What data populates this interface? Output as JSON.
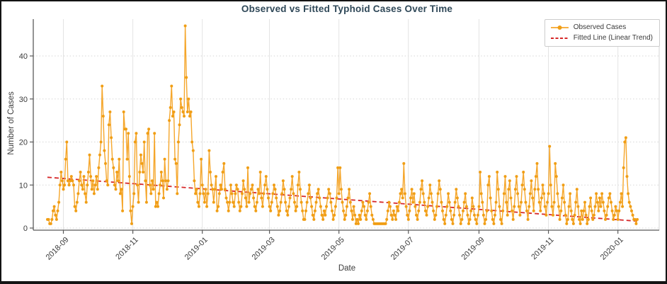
{
  "figure": {
    "title": "Observed vs Fitted Typhoid Cases Over Time",
    "xlabel": "Date",
    "ylabel": "Number of Cases"
  },
  "colors": {
    "observed_line": "#F5A62B",
    "observed_marker": "#F09E15",
    "fitted_line": "#D62728",
    "title_text": "#2F4858",
    "axis_text": "#3B3B3B",
    "grid_horizontal": "#D6D6D6",
    "grid_vertical": "#E3E3E3",
    "spine_dark": "#5A5A5A",
    "spine_light": "#D4D4D4",
    "legend_border": "#CCCCCC",
    "frame_border": "#141414",
    "background": "#FFFFFF"
  },
  "chart_data": {
    "type": "line",
    "title": "Observed vs Fitted Typhoid Cases Over Time",
    "xlabel": "Date",
    "ylabel": "Number of Cases",
    "grid": true,
    "legend_position": "upper right",
    "frequency": "daily",
    "x_start_date": "2018-08-18",
    "x_end_date": "2020-01-18",
    "y_ticks": [
      0,
      10,
      20,
      30,
      40
    ],
    "ylim": [
      -2,
      48.6
    ],
    "x_ticks": [
      {
        "label": "2018-09",
        "day_index": 14
      },
      {
        "label": "2018-11",
        "day_index": 75
      },
      {
        "label": "2019-01",
        "day_index": 136
      },
      {
        "label": "2019-03",
        "day_index": 195
      },
      {
        "label": "2019-05",
        "day_index": 256
      },
      {
        "label": "2019-07",
        "day_index": 317
      },
      {
        "label": "2019-09",
        "day_index": 379
      },
      {
        "label": "2019-11",
        "day_index": 440
      },
      {
        "label": "2020-01",
        "day_index": 501
      }
    ],
    "series": [
      {
        "name": "Observed Cases",
        "style": "line+marker",
        "values": [
          2,
          2,
          1,
          1,
          2,
          4,
          5,
          3,
          2,
          4,
          6,
          10,
          13,
          11,
          9,
          10,
          16,
          20,
          11,
          10,
          11,
          12,
          11,
          10,
          5,
          4,
          6,
          8,
          11,
          13,
          10,
          9,
          12,
          8,
          6,
          10,
          13,
          17,
          12,
          9,
          11,
          8,
          10,
          12,
          9,
          14,
          17,
          20,
          33,
          26,
          18,
          15,
          11,
          10,
          24,
          27,
          21,
          16,
          14,
          10,
          9,
          13,
          11,
          16,
          8,
          9,
          4,
          27,
          23,
          23,
          16,
          22,
          12,
          4,
          1,
          5,
          8,
          20,
          22,
          10,
          6,
          13,
          17,
          15,
          13,
          20,
          11,
          6,
          22,
          23,
          10,
          8,
          11,
          9,
          22,
          5,
          6,
          5,
          8,
          10,
          13,
          11,
          7,
          16,
          11,
          9,
          11,
          25,
          28,
          33,
          26,
          27,
          16,
          15,
          8,
          20,
          24,
          30,
          28,
          27,
          26,
          47,
          35,
          27,
          30,
          26,
          27,
          20,
          18,
          11,
          8,
          9,
          6,
          5,
          8,
          16,
          10,
          8,
          6,
          9,
          5,
          8,
          18,
          13,
          10,
          9,
          6,
          9,
          12,
          4,
          5,
          8,
          10,
          9,
          13,
          15,
          9,
          7,
          6,
          4,
          6,
          10,
          8,
          6,
          5,
          8,
          10,
          9,
          6,
          4,
          5,
          8,
          11,
          9,
          7,
          5,
          14,
          6,
          8,
          9,
          10,
          7,
          5,
          4,
          6,
          9,
          8,
          13,
          7,
          5,
          8,
          10,
          12,
          9,
          7,
          5,
          4,
          6,
          8,
          10,
          9,
          7,
          5,
          3,
          4,
          6,
          8,
          11,
          9,
          6,
          4,
          3,
          5,
          7,
          9,
          12,
          8,
          6,
          4,
          5,
          10,
          13,
          9,
          6,
          4,
          2,
          2,
          4,
          6,
          8,
          10,
          7,
          5,
          3,
          2,
          4,
          6,
          8,
          9,
          7,
          5,
          3,
          2,
          4,
          3,
          5,
          7,
          9,
          8,
          6,
          4,
          2,
          3,
          5,
          7,
          14,
          8,
          14,
          9,
          6,
          4,
          2,
          3,
          5,
          7,
          9,
          6,
          4,
          2,
          5,
          3,
          1,
          2,
          1,
          3,
          2,
          4,
          6,
          5,
          3,
          2,
          4,
          6,
          8,
          5,
          3,
          2,
          1,
          1,
          1,
          1,
          1,
          1,
          1,
          1,
          1,
          1,
          1,
          2,
          4,
          6,
          5,
          3,
          2,
          4,
          3,
          2,
          5,
          4,
          6,
          8,
          9,
          7,
          15,
          8,
          5,
          3,
          2,
          4,
          7,
          9,
          6,
          8,
          5,
          3,
          2,
          4,
          6,
          9,
          11,
          8,
          6,
          4,
          3,
          5,
          7,
          10,
          8,
          6,
          4,
          2,
          3,
          5,
          8,
          11,
          9,
          6,
          4,
          2,
          1,
          3,
          5,
          8,
          6,
          4,
          2,
          1,
          3,
          6,
          9,
          7,
          5,
          3,
          1,
          2,
          4,
          6,
          8,
          5,
          3,
          1,
          2,
          4,
          7,
          5,
          3,
          2,
          1,
          3,
          5,
          13,
          8,
          6,
          3,
          1,
          2,
          4,
          10,
          12,
          7,
          4,
          2,
          1,
          3,
          6,
          13,
          9,
          5,
          2,
          1,
          4,
          8,
          12,
          6,
          3,
          9,
          11,
          7,
          4,
          2,
          5,
          9,
          12,
          8,
          5,
          3,
          6,
          10,
          13,
          9,
          6,
          4,
          2,
          5,
          8,
          11,
          7,
          4,
          9,
          12,
          15,
          9,
          6,
          4,
          7,
          10,
          8,
          5,
          3,
          6,
          8,
          19,
          10,
          5,
          3,
          6,
          15,
          12,
          8,
          5,
          2,
          4,
          7,
          10,
          6,
          3,
          1,
          2,
          5,
          8,
          4,
          2,
          1,
          3,
          6,
          9,
          5,
          2,
          1,
          4,
          2,
          4,
          6,
          3,
          1,
          2,
          5,
          7,
          4,
          2,
          3,
          5,
          8,
          6,
          4,
          7,
          5,
          8,
          6,
          4,
          2,
          3,
          5,
          7,
          8,
          6,
          4,
          2,
          3,
          5,
          4,
          2,
          4,
          6,
          8,
          5,
          14,
          20,
          21,
          12,
          8,
          6,
          5,
          4,
          3,
          2,
          2,
          1,
          2
        ]
      },
      {
        "name": "Fitted Line (Linear Trend)",
        "style": "dashed",
        "trend_start": 11.8,
        "trend_end": 1.6
      }
    ]
  }
}
